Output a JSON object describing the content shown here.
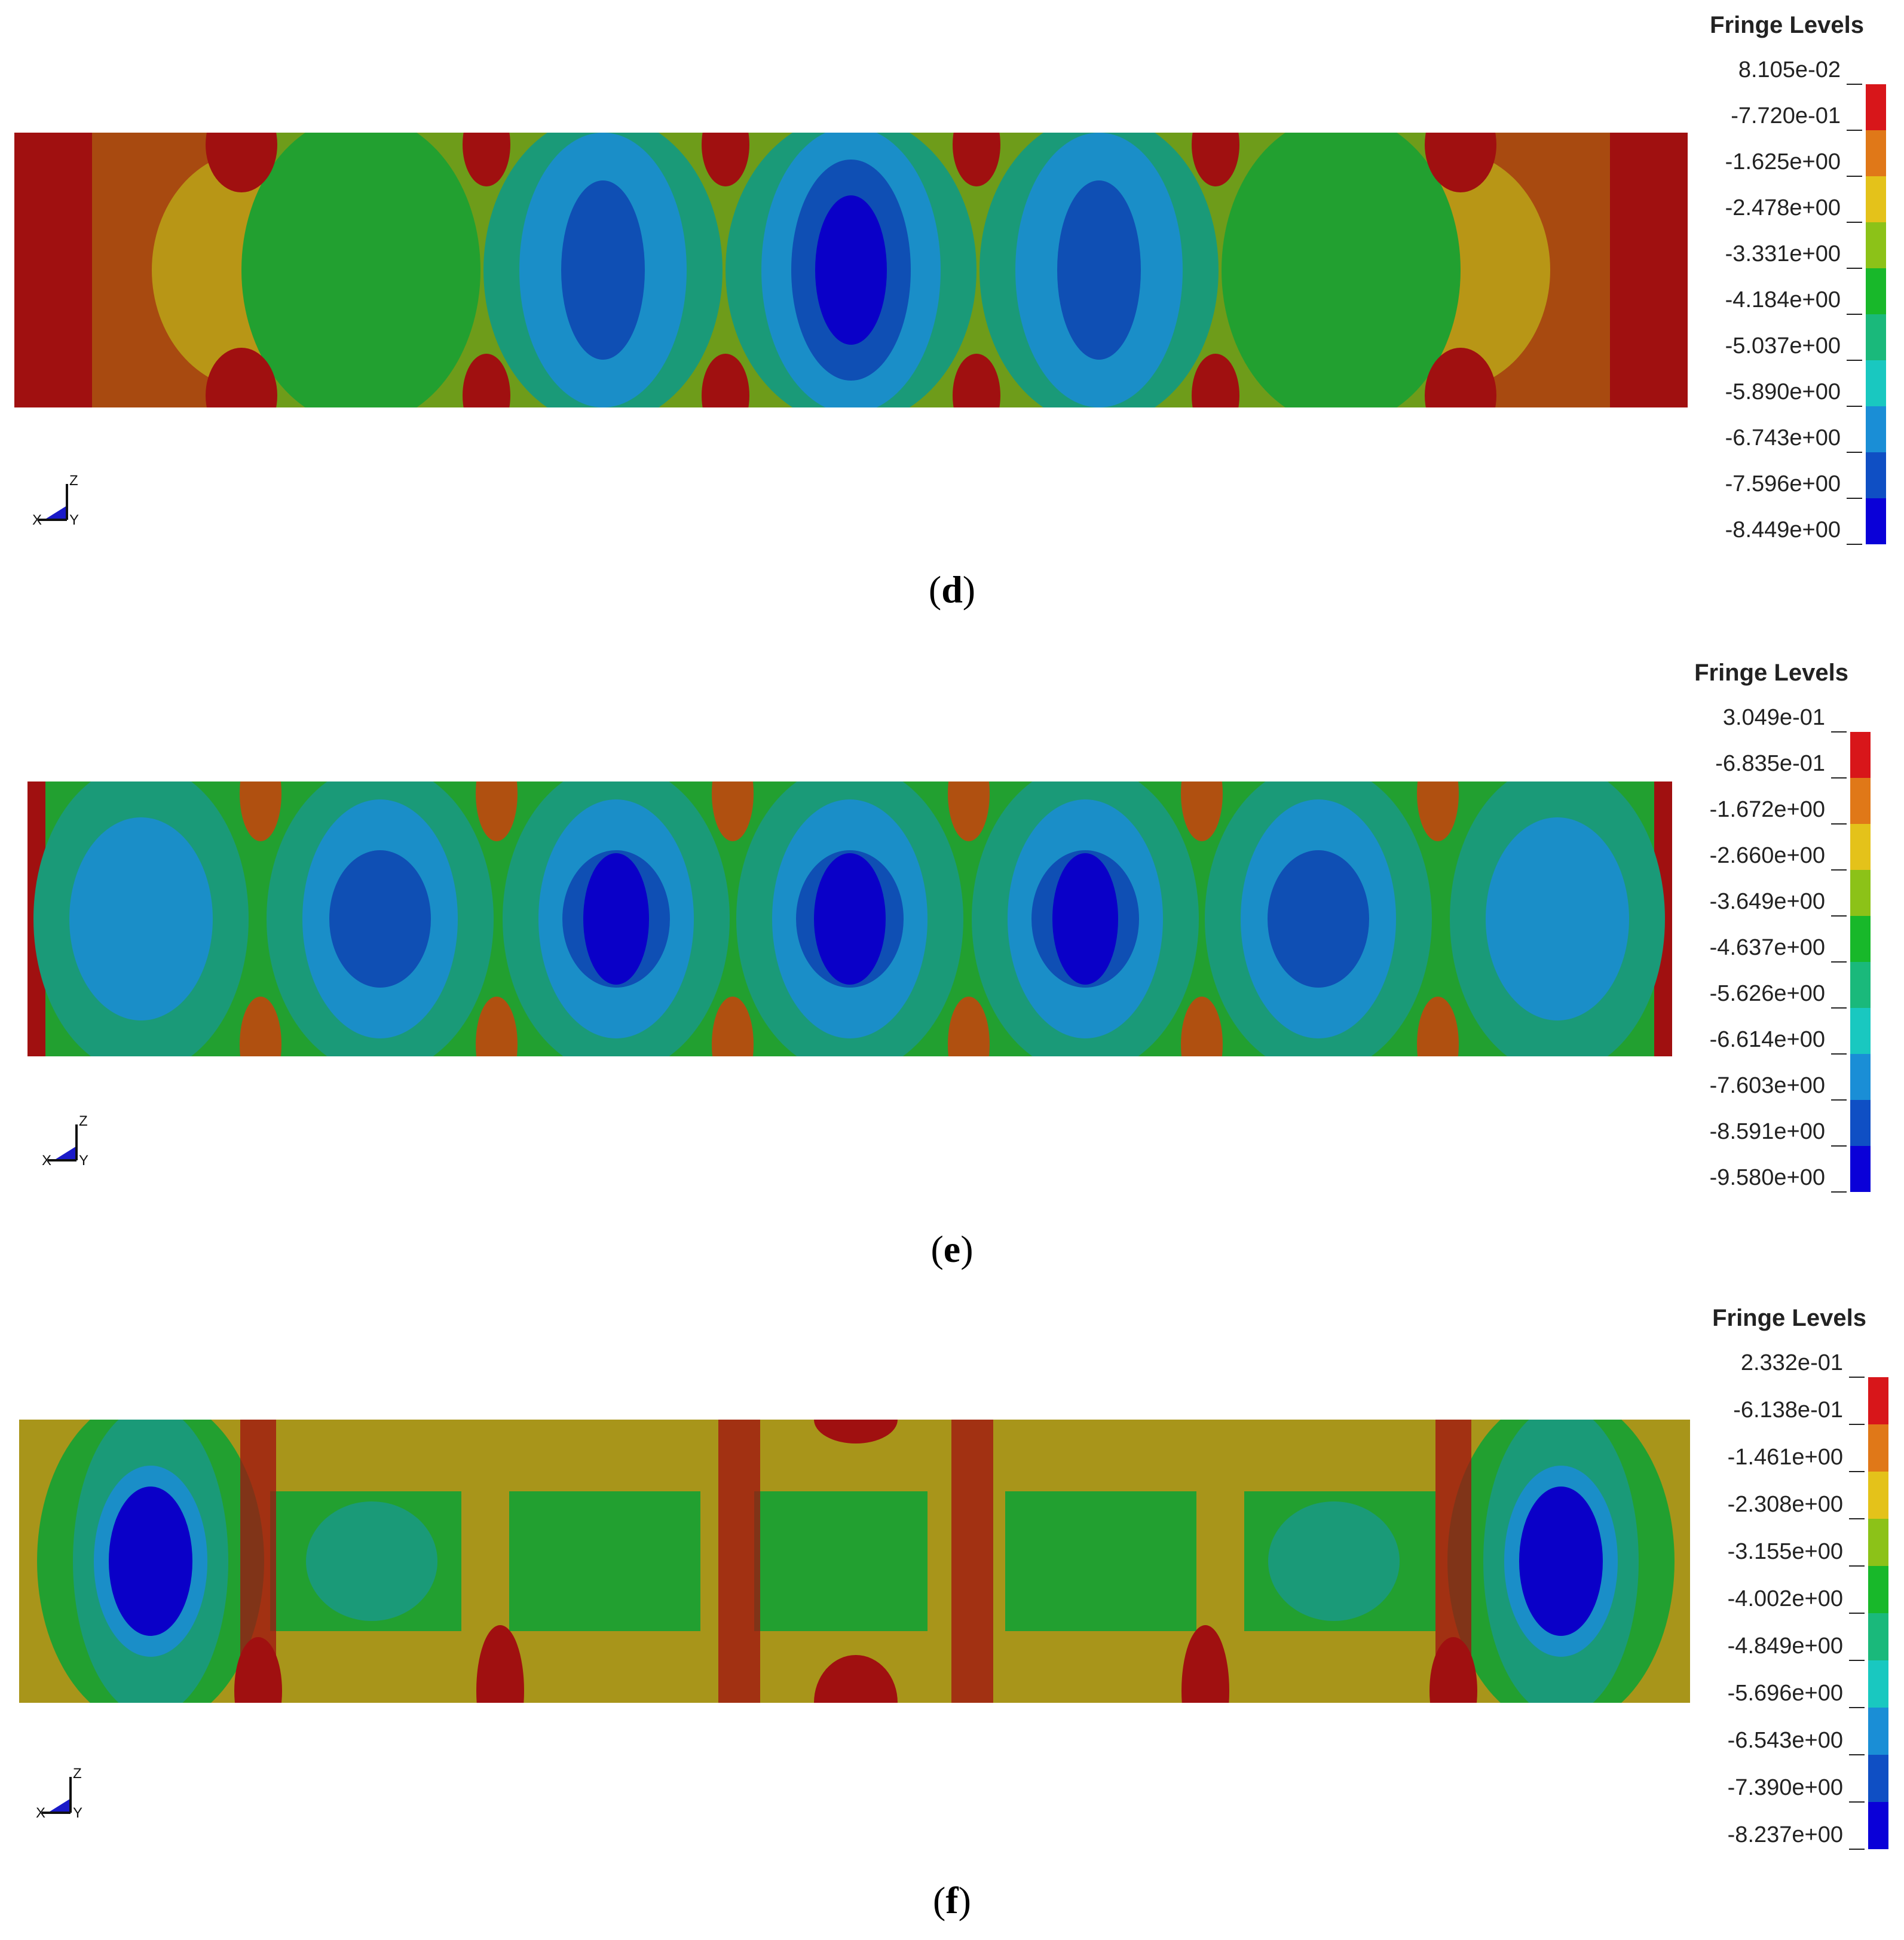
{
  "colors": [
    "#0a00d8",
    "#0f4fc4",
    "#1a8ed6",
    "#19c8c0",
    "#1ab97b",
    "#18b82a",
    "#8cc218",
    "#e4c21a",
    "#e07818",
    "#d8161a"
  ],
  "panels": [
    {
      "caption_letter": "d",
      "legend": {
        "title": "Fringe Levels",
        "levels": [
          "8.105e-02",
          "-7.720e-01",
          "-1.625e+00",
          "-2.478e+00",
          "-3.331e+00",
          "-4.184e+00",
          "-5.037e+00",
          "-5.890e+00",
          "-6.743e+00",
          "-7.596e+00",
          "-8.449e+00"
        ]
      },
      "axes": {
        "z": "Z",
        "x": "X",
        "y": "Y"
      }
    },
    {
      "caption_letter": "e",
      "legend": {
        "title": "Fringe Levels",
        "levels": [
          "3.049e-01",
          "-6.835e-01",
          "-1.672e+00",
          "-2.660e+00",
          "-3.649e+00",
          "-4.637e+00",
          "-5.626e+00",
          "-6.614e+00",
          "-7.603e+00",
          "-8.591e+00",
          "-9.580e+00"
        ]
      },
      "axes": {
        "z": "Z",
        "x": "X",
        "y": "Y"
      }
    },
    {
      "caption_letter": "f",
      "legend": {
        "title": "Fringe Levels",
        "levels": [
          "2.332e-01",
          "-6.138e-01",
          "-1.461e+00",
          "-2.308e+00",
          "-3.155e+00",
          "-4.002e+00",
          "-4.849e+00",
          "-5.696e+00",
          "-6.543e+00",
          "-7.390e+00",
          "-8.237e+00"
        ]
      },
      "axes": {
        "z": "Z",
        "x": "X",
        "y": "Y"
      }
    }
  ]
}
